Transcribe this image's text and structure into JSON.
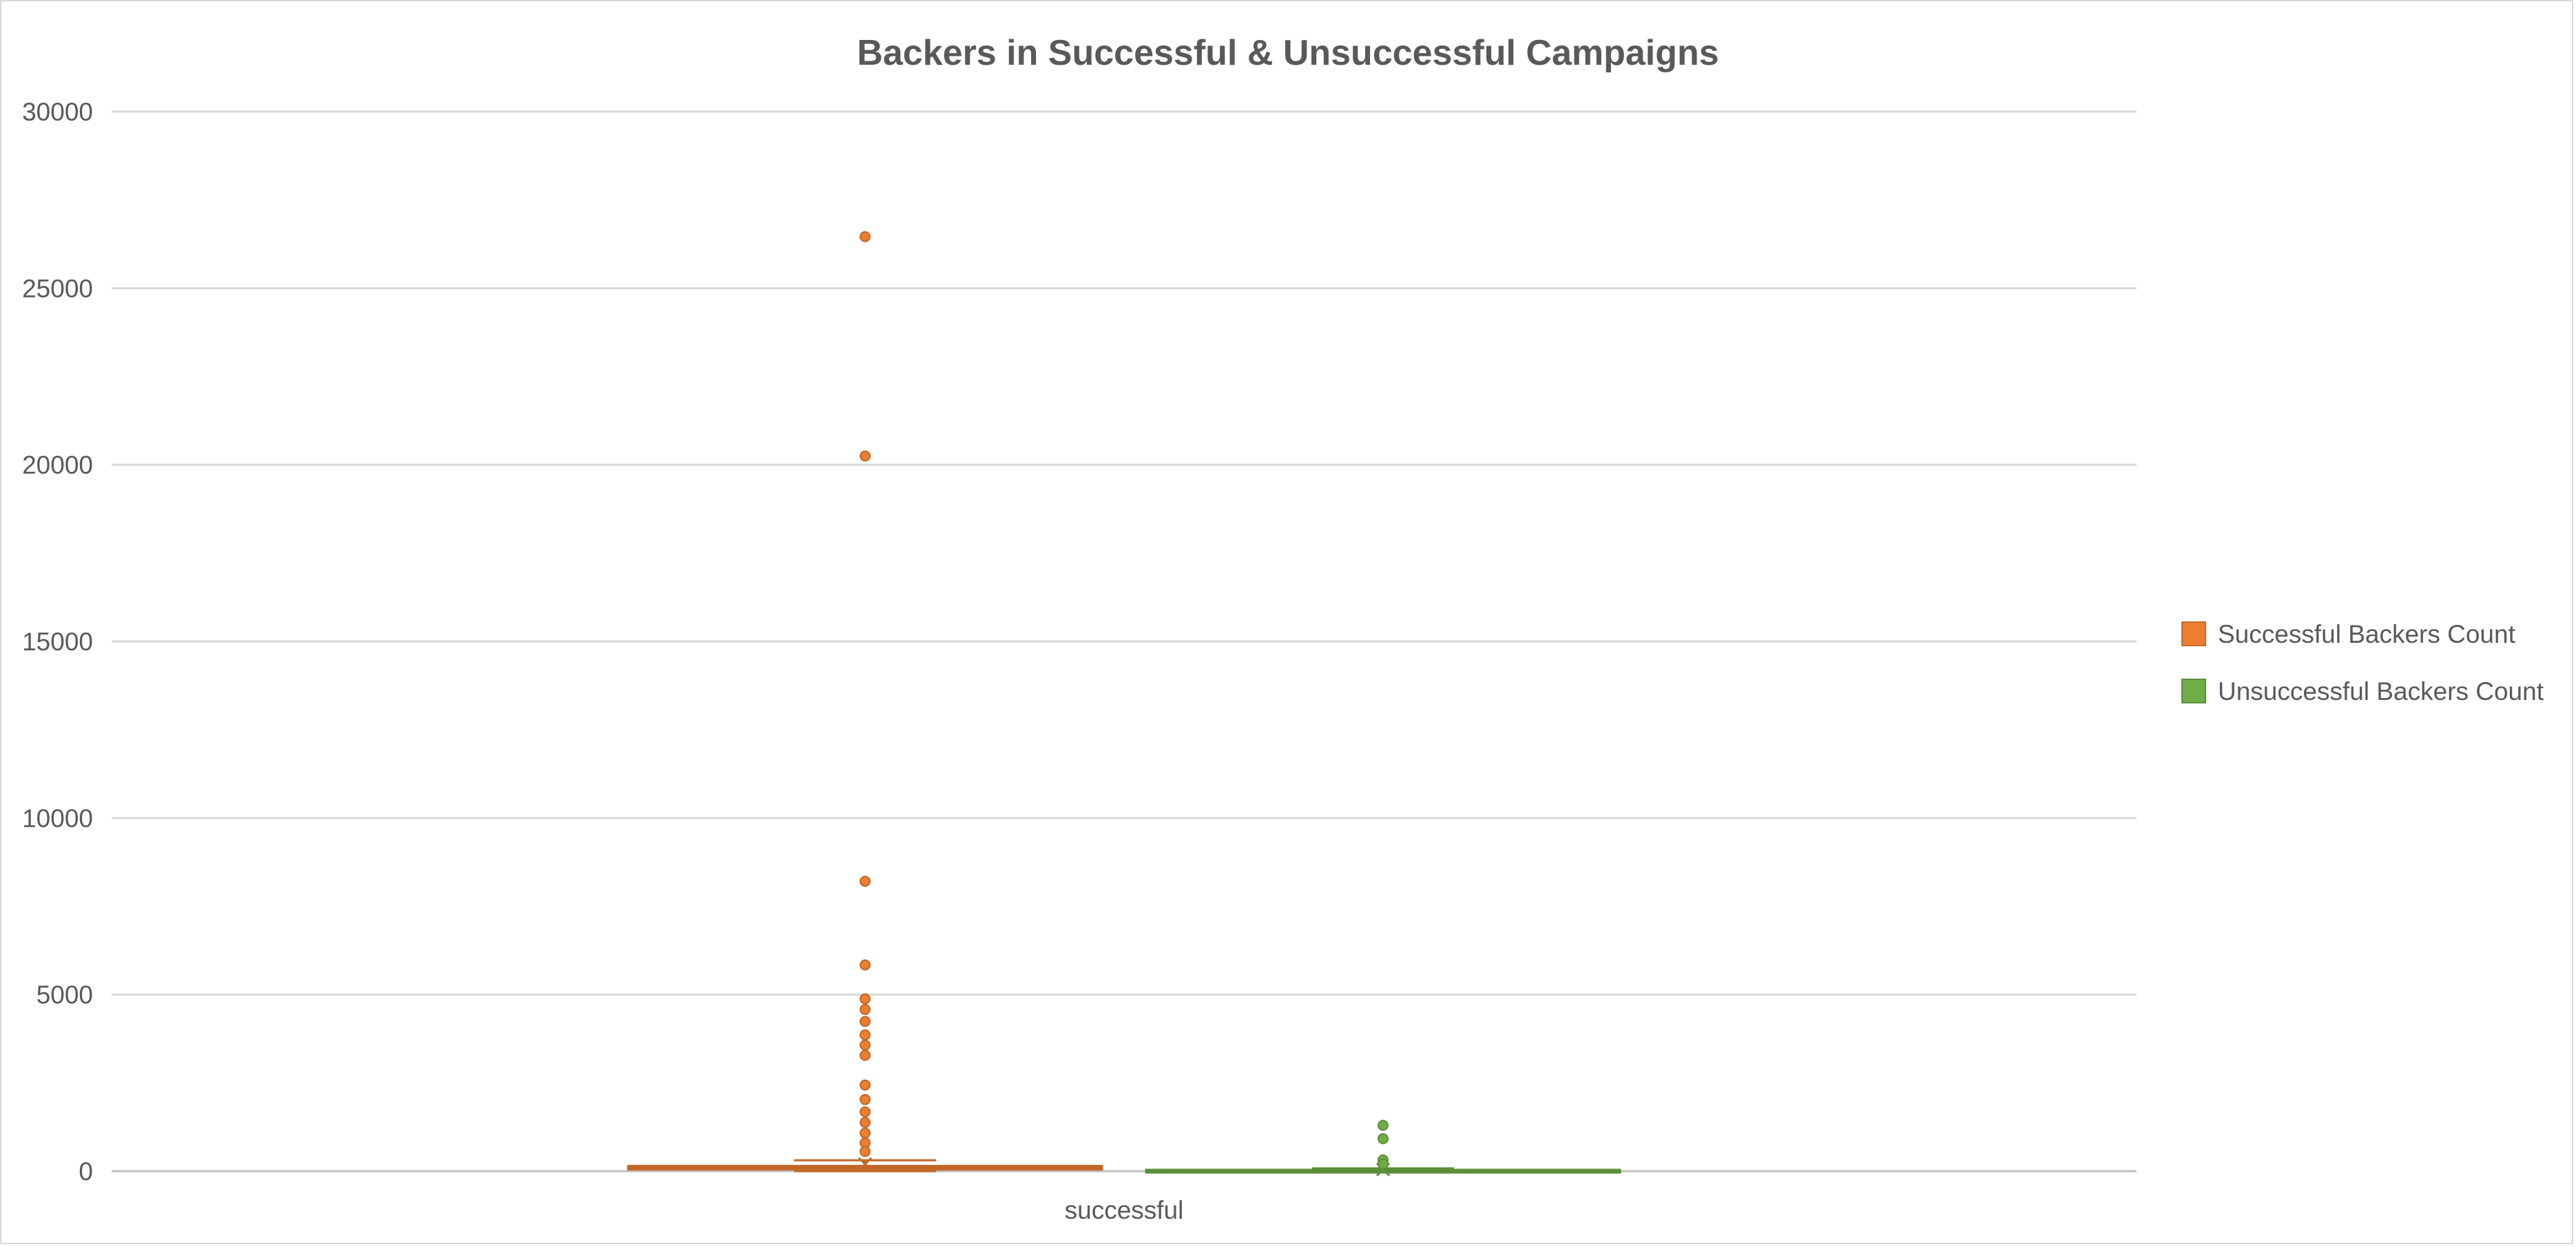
{
  "chart_data": {
    "type": "box",
    "title": "Backers in Successful & Unsuccessful Campaigns",
    "xlabel": "",
    "ylabel": "",
    "categories": [
      "successful"
    ],
    "ylim": [
      0,
      30000
    ],
    "y_ticks": [
      0,
      5000,
      10000,
      15000,
      20000,
      25000,
      30000
    ],
    "grid": true,
    "legend_position": "right",
    "series": [
      {
        "name": "Successful Backers Count",
        "color": "#ed7d31",
        "box": {
          "min": 0,
          "q1": 50,
          "median": 100,
          "q3": 150,
          "max": 310,
          "mean": 200
        },
        "outliers": [
          26460,
          20250,
          8210,
          5840,
          4880,
          4580,
          4240,
          3860,
          3570,
          3280,
          2440,
          2030,
          1680,
          1380,
          1080,
          800,
          560
        ]
      },
      {
        "name": "Unsuccessful Backers Count",
        "color": "#70ad47",
        "box": {
          "min": 0,
          "q1": 10,
          "median": 20,
          "q3": 40,
          "max": 80,
          "mean": 50
        },
        "outliers": [
          1300,
          920,
          320,
          200
        ]
      }
    ]
  }
}
